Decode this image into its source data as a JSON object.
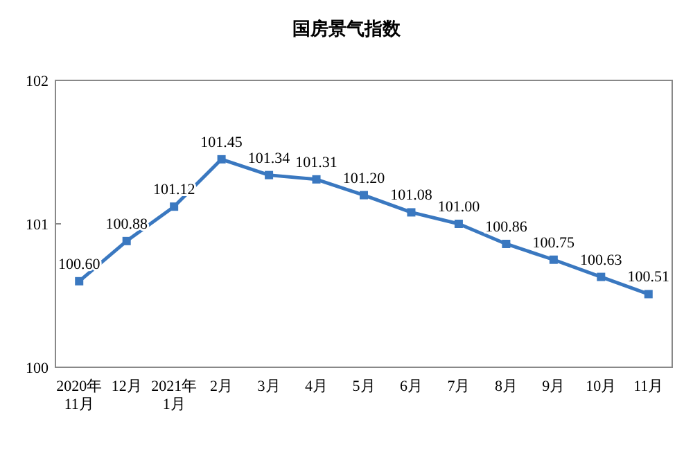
{
  "chart_data": {
    "type": "line",
    "title": "国房景气指数",
    "categories": [
      "2020年\n11月",
      "12月",
      "2021年\n1月",
      "2月",
      "3月",
      "4月",
      "5月",
      "6月",
      "7月",
      "8月",
      "9月",
      "10月",
      "11月"
    ],
    "values": [
      100.6,
      100.88,
      101.12,
      101.45,
      101.34,
      101.31,
      101.2,
      101.08,
      101.0,
      100.86,
      100.75,
      100.63,
      100.51
    ],
    "color": "#3a78c0",
    "ylim": [
      100,
      102
    ],
    "yticks": [
      100,
      101,
      102
    ],
    "value_labels": [
      "100.60",
      "100.88",
      "101.12",
      "101.45",
      "101.34",
      "101.31",
      "101.20",
      "101.08",
      "101.00",
      "100.86",
      "100.75",
      "100.63",
      "100.51"
    ],
    "marker": "square",
    "line_style": "solid",
    "grid": false
  }
}
